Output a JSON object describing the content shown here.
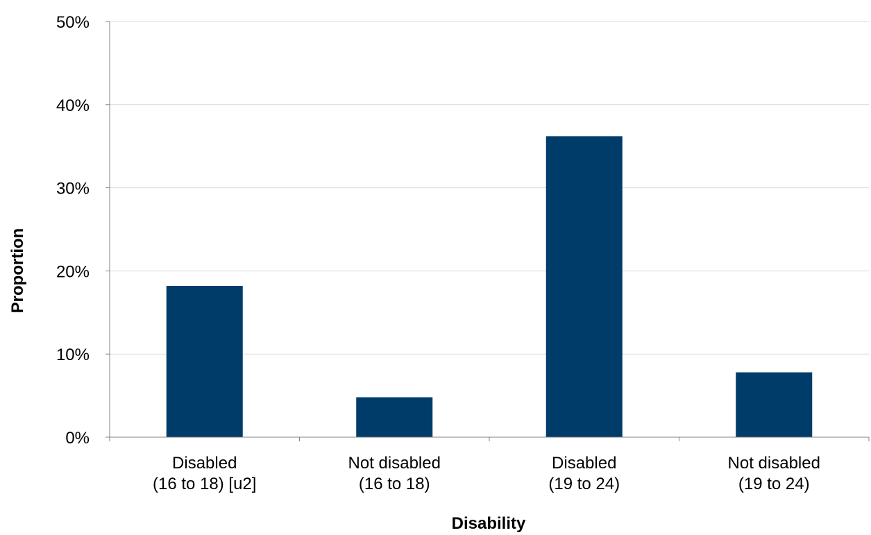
{
  "chart_data": {
    "type": "bar",
    "categories": [
      [
        "Disabled",
        "(16 to 18) [u2]"
      ],
      [
        "Not disabled",
        "(16 to 18)"
      ],
      [
        "Disabled",
        "(19 to 24)"
      ],
      [
        "Not disabled",
        "(19 to 24)"
      ]
    ],
    "values": [
      18.2,
      4.8,
      36.2,
      7.8
    ],
    "xlabel": "Disability",
    "ylabel": "Proportion",
    "ylim": [
      0,
      50
    ],
    "yticks": [
      "0%",
      "10%",
      "20%",
      "30%",
      "40%",
      "50%"
    ],
    "grid": true,
    "legend": "none",
    "bar_color": "#003c69"
  }
}
